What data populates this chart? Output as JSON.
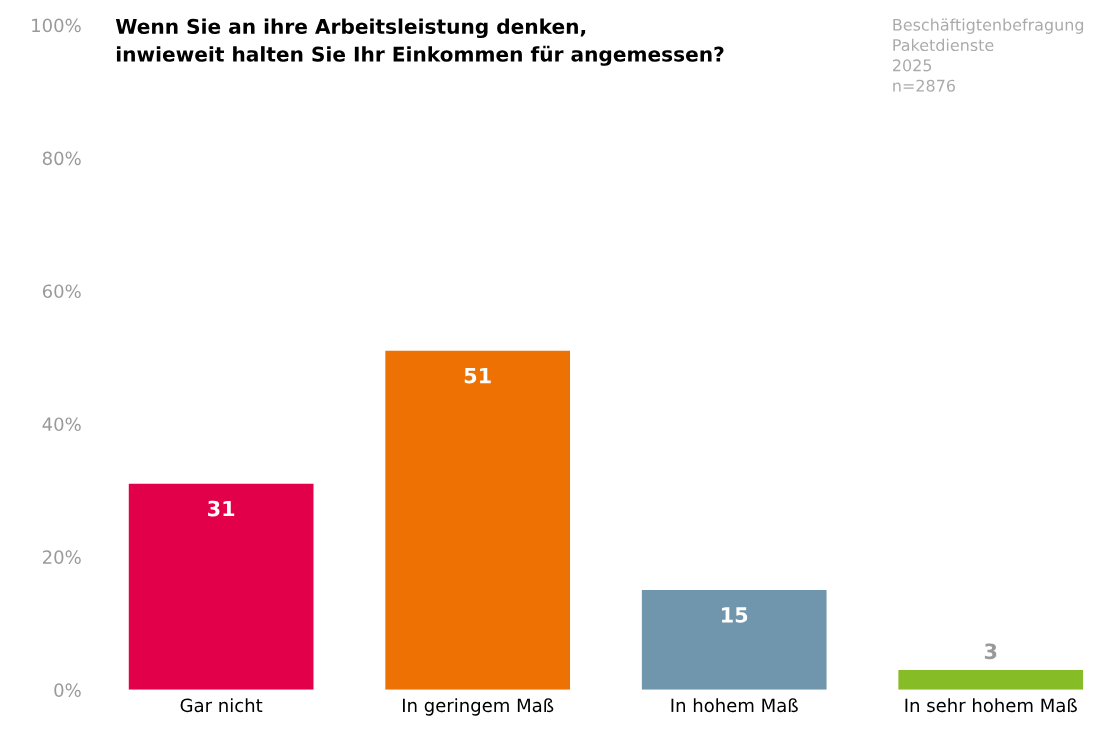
{
  "chart_data": {
    "type": "bar",
    "title": "Wenn Sie an ihre Arbeitsleistung denken,\ninwieweit halten Sie Ihr Einkommen für angemessen?",
    "categories": [
      "Gar nicht",
      "In geringem Maß",
      "In hohem Maß",
      "In sehr hohem Maß"
    ],
    "values": [
      31,
      51,
      15,
      3
    ],
    "colors": [
      "#e2004a",
      "#ee7203",
      "#6f96ad",
      "#86bc25"
    ],
    "ylim": [
      0,
      100
    ],
    "yticks": [
      {
        "value": 0,
        "label": "0%"
      },
      {
        "value": 20,
        "label": "20%"
      },
      {
        "value": 40,
        "label": "40%"
      },
      {
        "value": 60,
        "label": "60%"
      },
      {
        "value": 80,
        "label": "80%"
      },
      {
        "value": 100,
        "label": "100%"
      }
    ],
    "data_labels": true,
    "grid": false,
    "annotations": [
      "Beschäftigtenbefragung\nPaketdienste\n2025\nn=2876"
    ]
  }
}
